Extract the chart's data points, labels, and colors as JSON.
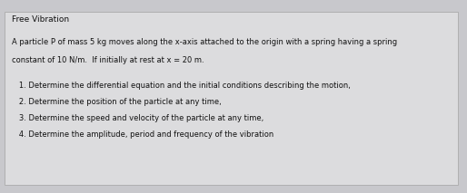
{
  "title": "Free Vibration",
  "intro_line1": "A particle P of mass 5 kg moves along the x-axis attached to the origin with a spring having a spring",
  "intro_line2": "constant of 10 N/m.  If initially at rest at x = 20 m.",
  "items": [
    "   1. Determine the differential equation and the initial conditions describing the motion,",
    "   2. Determine the position of the particle at any time,",
    "   3. Determine the speed and velocity of the particle at any time,",
    "   4. Determine the amplitude, period and frequency of the vibration"
  ],
  "bg_color": "#c8c8cc",
  "box_color": "#dcdcde",
  "box_edge_color": "#aaaaaa",
  "text_color": "#111111",
  "title_fontsize": 6.5,
  "body_fontsize": 6.0,
  "item_fontsize": 6.0,
  "fig_width": 5.14,
  "fig_height": 2.13,
  "dpi": 100
}
